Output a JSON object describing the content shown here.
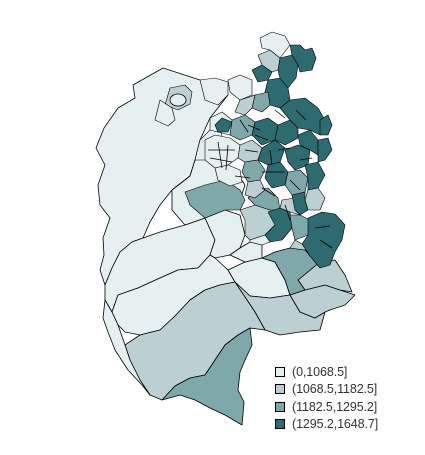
{
  "map": {
    "classes": [
      {
        "label": "(0,1068.5]",
        "color": "#e6f0f0"
      },
      {
        "label": "(1068.5,1182.5]",
        "color": "#bcd0d3"
      },
      {
        "label": "(1182.5,1295.2]",
        "color": "#7fa8ab"
      },
      {
        "label": "(1295.2,1648.7]",
        "color": "#2e6b70"
      }
    ]
  }
}
